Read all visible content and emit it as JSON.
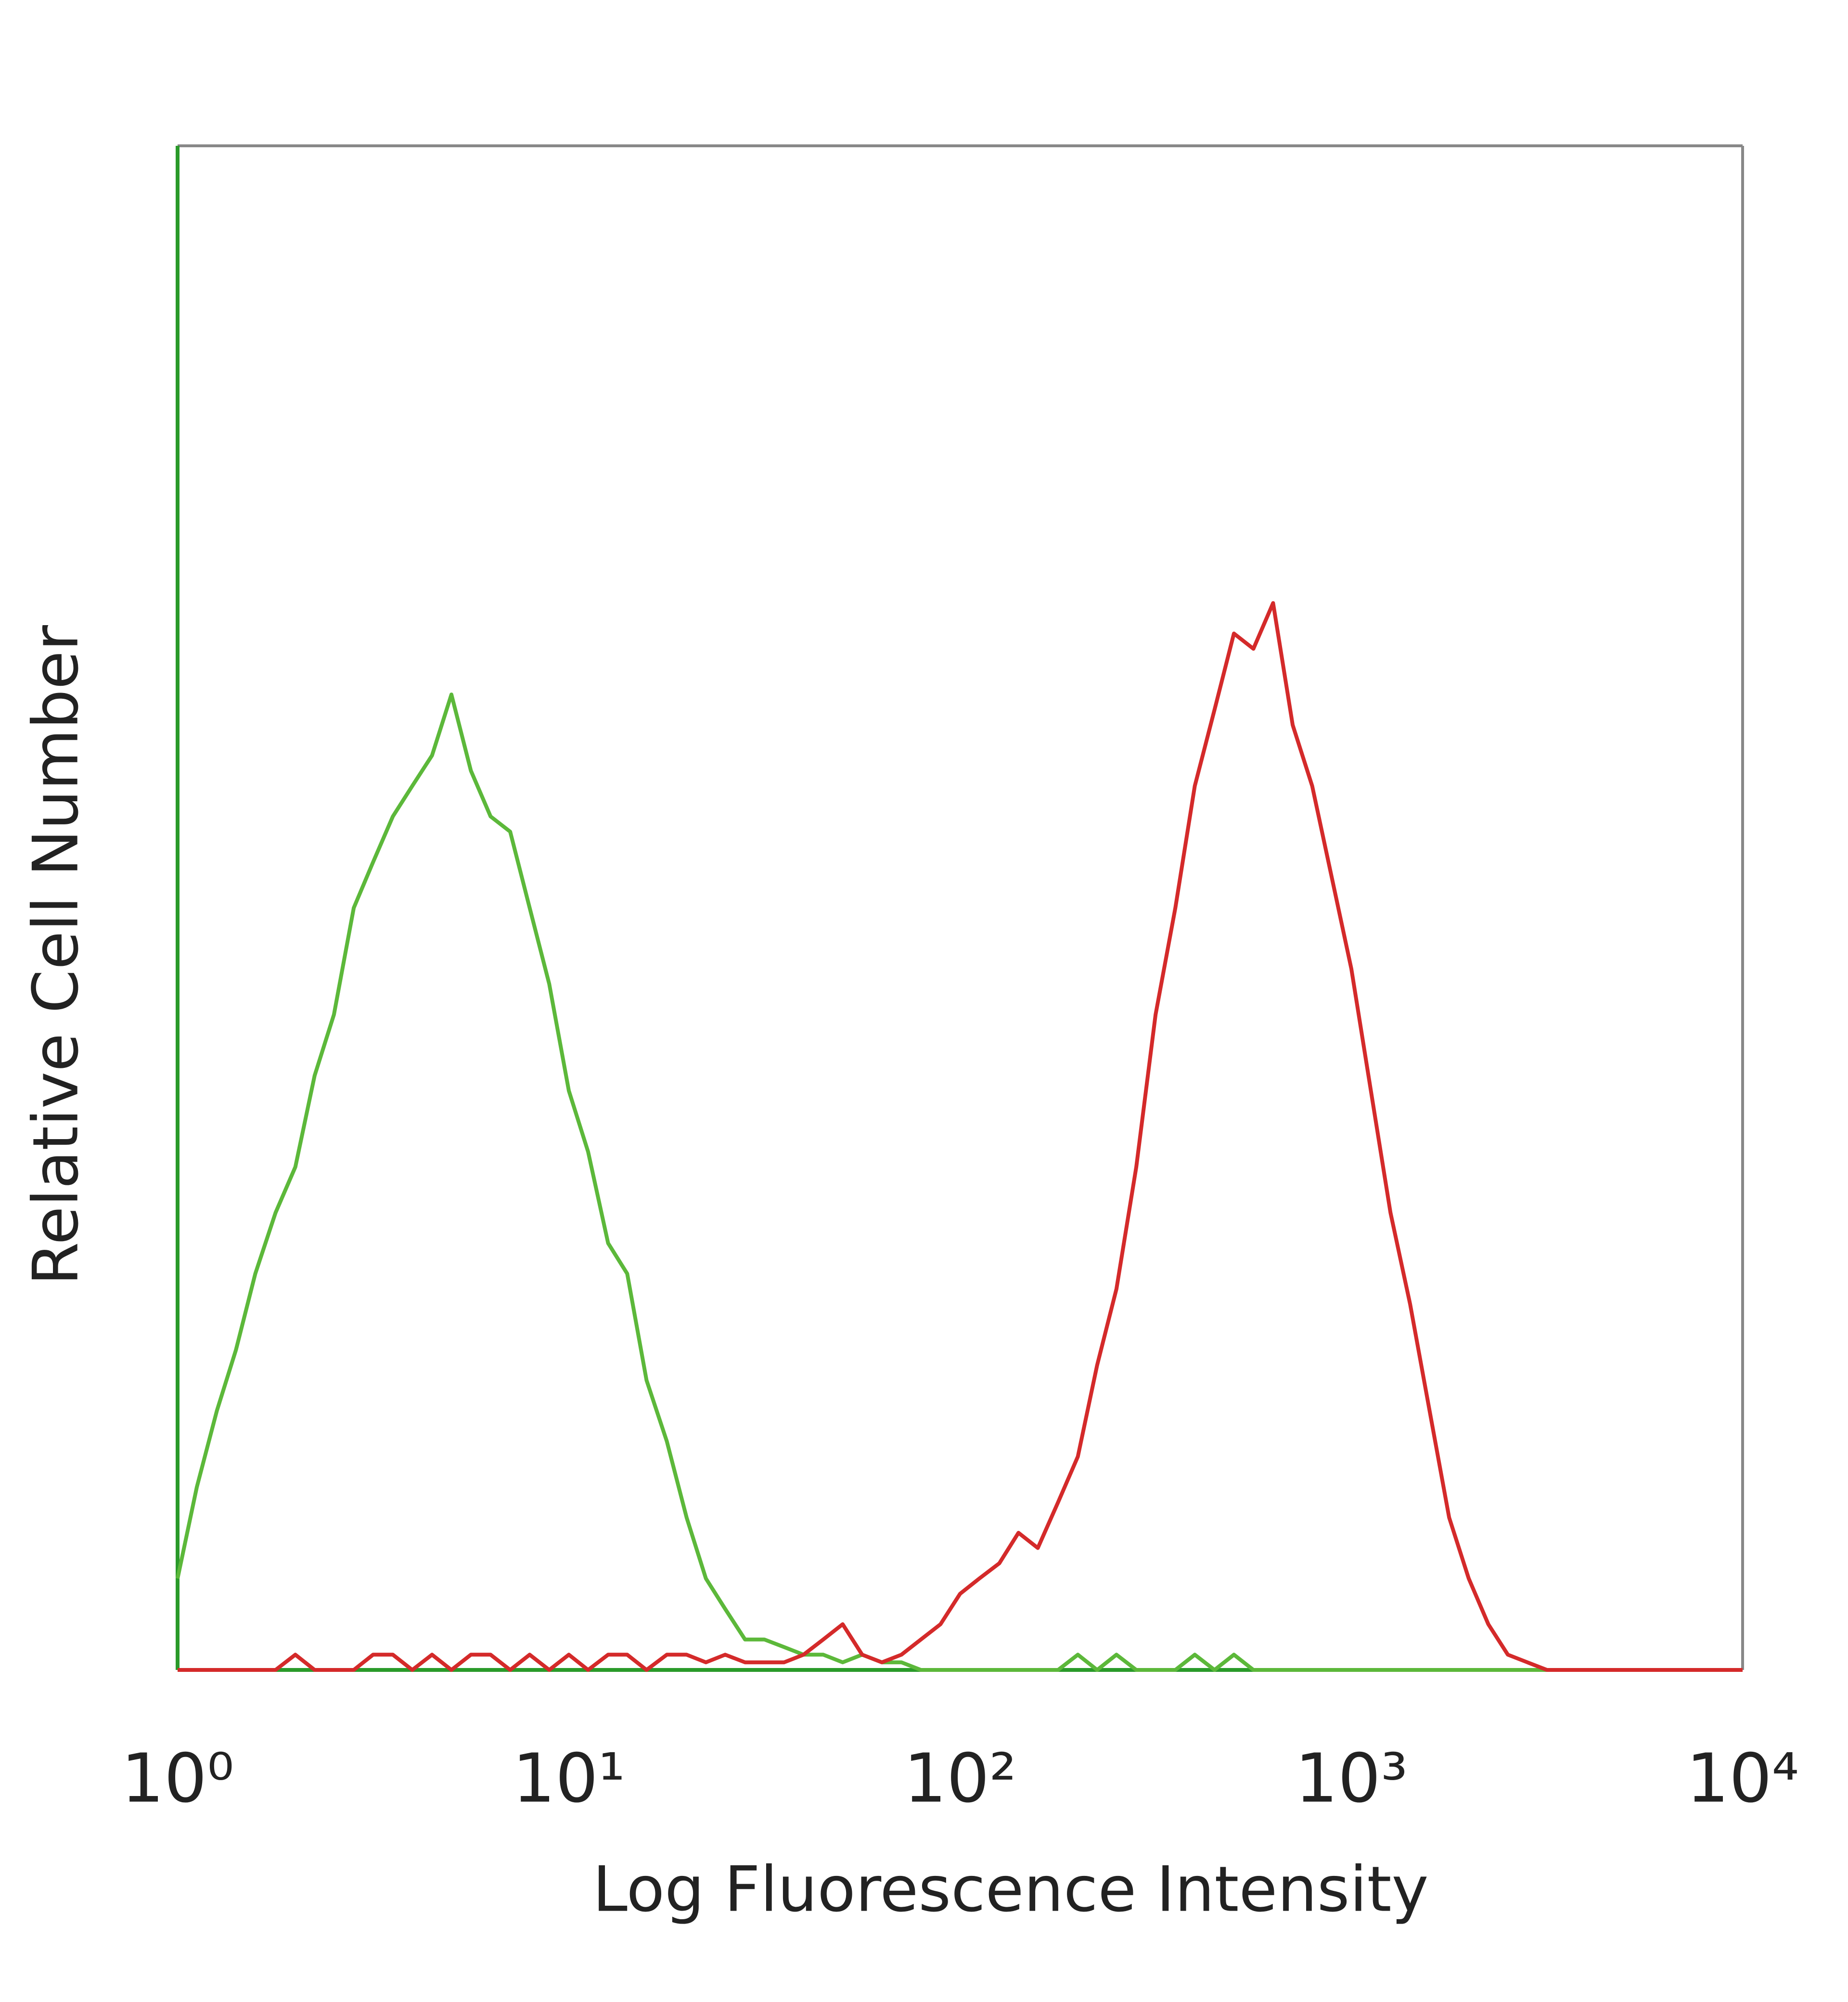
{
  "chart_data": {
    "type": "line",
    "xlabel": "Log Fluorescence Intensity",
    "ylabel": "Relative Cell Number",
    "xscale": "log",
    "xlim": [
      1,
      10000
    ],
    "xticks": [
      {
        "value": 1,
        "label": "10⁰"
      },
      {
        "value": 10,
        "label": "10¹"
      },
      {
        "value": 100,
        "label": "10²"
      },
      {
        "value": 1000,
        "label": "10³"
      },
      {
        "value": 10000,
        "label": "10⁴"
      }
    ],
    "ylim": [
      0,
      100
    ],
    "grid": false,
    "x": [
      1,
      1.12,
      1.26,
      1.41,
      1.58,
      1.78,
      2,
      2.24,
      2.51,
      2.82,
      3.16,
      3.55,
      3.98,
      4.47,
      5.01,
      5.62,
      6.31,
      7.08,
      7.94,
      8.91,
      10,
      11.2,
      12.6,
      14.1,
      15.8,
      17.8,
      20,
      22.4,
      25.1,
      28.2,
      31.6,
      35.5,
      39.8,
      44.7,
      50.1,
      56.2,
      63.1,
      70.8,
      79.4,
      89.1,
      100,
      112,
      126,
      141,
      158,
      178,
      200,
      224,
      251,
      282,
      316,
      355,
      398,
      447,
      501,
      562,
      631,
      708,
      794,
      891,
      1000,
      1122,
      1259,
      1413,
      1585,
      1778,
      1995,
      2239,
      2512,
      2818,
      3162,
      3548,
      3981,
      4467,
      5012,
      5623,
      6310,
      7079,
      7943,
      8913,
      10000
    ],
    "series": [
      {
        "color": "#5cb83a",
        "values": [
          6,
          12,
          17,
          21,
          26,
          30,
          33,
          39,
          43,
          50,
          53,
          56,
          58,
          60,
          64,
          59,
          56,
          55,
          50,
          45,
          38,
          34,
          28,
          26,
          19,
          15,
          10,
          6,
          4,
          2,
          2,
          1.5,
          1,
          1,
          0.5,
          1,
          0.5,
          0.5,
          0,
          0,
          0,
          0,
          0,
          0,
          0,
          0,
          1,
          0,
          1,
          0,
          0,
          0,
          1,
          0,
          1,
          0,
          0,
          0,
          0,
          0,
          0,
          0,
          0,
          0,
          0,
          0,
          0,
          0,
          0,
          0,
          0,
          0,
          0,
          0,
          0,
          0,
          0,
          0,
          0,
          0,
          0
        ]
      },
      {
        "color": "#d42a2a",
        "values": [
          0,
          0,
          0,
          0,
          0,
          0,
          1,
          0,
          0,
          0,
          1,
          1,
          0,
          1,
          0,
          1,
          1,
          0,
          1,
          0,
          1,
          0,
          1,
          1,
          0,
          1,
          1,
          0.5,
          1,
          0.5,
          0.5,
          0.5,
          1,
          2,
          3,
          1,
          0.5,
          1,
          2,
          3,
          5,
          6,
          7,
          9,
          8,
          11,
          14,
          20,
          25,
          33,
          43,
          50,
          58,
          63,
          68,
          67,
          70,
          62,
          58,
          52,
          46,
          38,
          30,
          24,
          17,
          10,
          6,
          3,
          1,
          0.5,
          0,
          0,
          0,
          0,
          0,
          0,
          0,
          0,
          0,
          0,
          0
        ]
      }
    ]
  }
}
